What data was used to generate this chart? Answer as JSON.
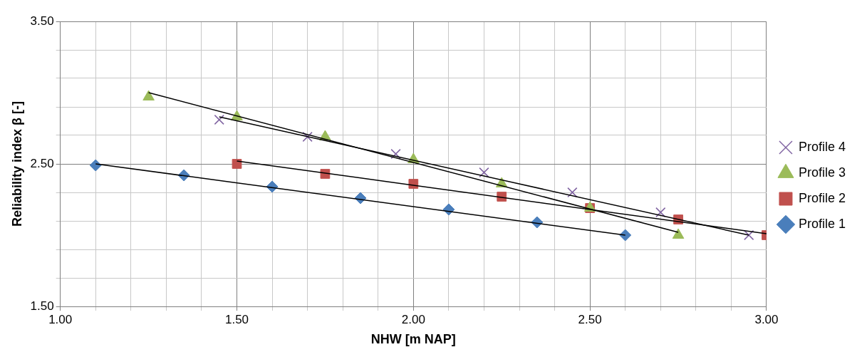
{
  "chart_data": {
    "type": "scatter",
    "xlabel": "NHW [m NAP]",
    "ylabel": "Reliability index β [-]",
    "xlim": [
      1.0,
      3.0
    ],
    "ylim": [
      1.5,
      3.5
    ],
    "xticks": [
      {
        "value": 1.0,
        "label": "1.00"
      },
      {
        "value": 1.1,
        "label": null
      },
      {
        "value": 1.2,
        "label": null
      },
      {
        "value": 1.3,
        "label": null
      },
      {
        "value": 1.4,
        "label": null
      },
      {
        "value": 1.5,
        "label": "1.50"
      },
      {
        "value": 1.6,
        "label": null
      },
      {
        "value": 1.7,
        "label": null
      },
      {
        "value": 1.8,
        "label": null
      },
      {
        "value": 1.9,
        "label": null
      },
      {
        "value": 2.0,
        "label": "2.00"
      },
      {
        "value": 2.1,
        "label": null
      },
      {
        "value": 2.2,
        "label": null
      },
      {
        "value": 2.3,
        "label": null
      },
      {
        "value": 2.4,
        "label": null
      },
      {
        "value": 2.5,
        "label": "2.50"
      },
      {
        "value": 2.6,
        "label": null
      },
      {
        "value": 2.7,
        "label": null
      },
      {
        "value": 2.8,
        "label": null
      },
      {
        "value": 2.9,
        "label": null
      },
      {
        "value": 3.0,
        "label": "3.00"
      }
    ],
    "yticks": [
      {
        "value": 1.5,
        "label": "1.50"
      },
      {
        "value": 1.7,
        "label": null
      },
      {
        "value": 1.9,
        "label": null
      },
      {
        "value": 2.1,
        "label": null
      },
      {
        "value": 2.3,
        "label": null
      },
      {
        "value": 2.5,
        "label": "2.50"
      },
      {
        "value": 2.7,
        "label": null
      },
      {
        "value": 2.9,
        "label": null
      },
      {
        "value": 3.1,
        "label": null
      },
      {
        "value": 3.3,
        "label": null
      },
      {
        "value": 3.5,
        "label": "3.50"
      }
    ],
    "grid": true,
    "legend": "right",
    "series": [
      {
        "name": "Profile 1",
        "color": "#4a7ebb",
        "marker": "diamond",
        "x": [
          1.1,
          1.35,
          1.6,
          1.85,
          2.1,
          2.35,
          2.6
        ],
        "values": [
          2.49,
          2.42,
          2.34,
          2.26,
          2.18,
          2.09,
          2.0
        ]
      },
      {
        "name": "Profile 2",
        "color": "#c0504d",
        "marker": "square",
        "x": [
          1.5,
          1.75,
          2.0,
          2.25,
          2.5,
          2.75,
          3.0
        ],
        "values": [
          2.5,
          2.43,
          2.36,
          2.27,
          2.19,
          2.11,
          2.0
        ]
      },
      {
        "name": "Profile 3",
        "color": "#9bbb59",
        "marker": "triangle",
        "x": [
          1.25,
          1.5,
          1.75,
          2.0,
          2.25,
          2.5,
          2.75
        ],
        "values": [
          2.97,
          2.83,
          2.69,
          2.53,
          2.36,
          2.19,
          2.0
        ]
      },
      {
        "name": "Profile 4",
        "color": "#8064a2",
        "marker": "cross",
        "x": [
          1.45,
          1.7,
          1.95,
          2.2,
          2.45,
          2.7,
          2.95
        ],
        "values": [
          2.81,
          2.69,
          2.57,
          2.44,
          2.3,
          2.16,
          2.0
        ]
      },
      {
        "type": "line",
        "color": "#000000",
        "x": [
          1.1,
          2.6
        ],
        "values": [
          2.5,
          2.0
        ]
      },
      {
        "type": "line",
        "color": "#000000",
        "x": [
          1.5,
          3.0
        ],
        "values": [
          2.52,
          2.01
        ]
      },
      {
        "type": "line",
        "color": "#000000",
        "x": [
          1.25,
          2.75
        ],
        "values": [
          3.0,
          2.02
        ]
      },
      {
        "type": "line",
        "color": "#000000",
        "x": [
          1.45,
          2.95
        ],
        "values": [
          2.83,
          2.0
        ]
      }
    ]
  }
}
